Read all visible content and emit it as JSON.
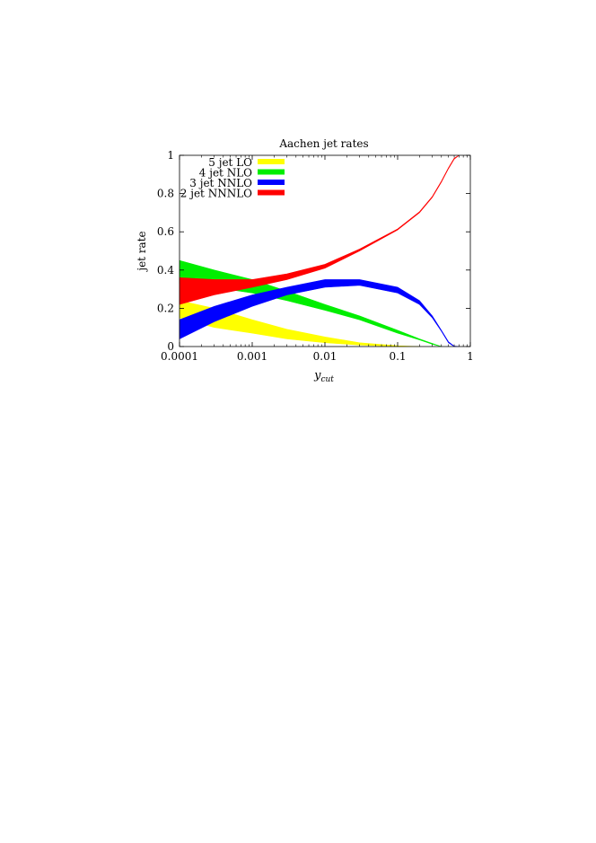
{
  "chart_data": {
    "type": "area",
    "title": "Aachen jet rates",
    "xlabel": "y",
    "xlabel_subscript": "cut",
    "ylabel": "jet rate",
    "xscale": "log",
    "xlim": [
      0.0001,
      1
    ],
    "ylim": [
      0,
      1
    ],
    "xticks": [
      0.0001,
      0.001,
      0.01,
      0.1,
      1
    ],
    "xtick_labels": [
      "0.0001",
      "0.001",
      "0.01",
      "0.1",
      "1"
    ],
    "yticks": [
      0,
      0.2,
      0.4,
      0.6,
      0.8,
      1
    ],
    "ytick_labels": [
      "0",
      "0.2",
      "0.4",
      "0.6",
      "0.8",
      "1"
    ],
    "legend_position": "top-left",
    "series": [
      {
        "name": "5 jet LO",
        "color": "#ffff00",
        "x": [
          0.0001,
          0.0003,
          0.001,
          0.003,
          0.01,
          0.03,
          0.1,
          0.2
        ],
        "lower": [
          0.15,
          0.1,
          0.07,
          0.04,
          0.02,
          0.008,
          0.001,
          0.0
        ],
        "upper": [
          0.24,
          0.2,
          0.14,
          0.09,
          0.05,
          0.02,
          0.004,
          0.0
        ]
      },
      {
        "name": "4 jet NLO",
        "color": "#00ee00",
        "x": [
          0.0001,
          0.0003,
          0.001,
          0.003,
          0.01,
          0.03,
          0.1,
          0.2,
          0.3,
          0.4
        ],
        "lower": [
          0.33,
          0.31,
          0.28,
          0.24,
          0.19,
          0.14,
          0.07,
          0.035,
          0.012,
          0.0
        ],
        "upper": [
          0.45,
          0.4,
          0.35,
          0.29,
          0.22,
          0.16,
          0.085,
          0.04,
          0.016,
          0.0
        ]
      },
      {
        "name": "3 jet NNLO",
        "color": "#0000ff",
        "x": [
          0.0001,
          0.0003,
          0.001,
          0.003,
          0.01,
          0.03,
          0.1,
          0.2,
          0.3,
          0.4,
          0.5,
          0.6,
          0.7
        ],
        "lower": [
          0.04,
          0.13,
          0.21,
          0.27,
          0.31,
          0.32,
          0.28,
          0.22,
          0.15,
          0.08,
          0.02,
          0.0,
          0.0
        ],
        "upper": [
          0.14,
          0.21,
          0.27,
          0.31,
          0.35,
          0.35,
          0.31,
          0.24,
          0.16,
          0.085,
          0.025,
          0.002,
          0.0
        ]
      },
      {
        "name": "2 jet NNNLO",
        "color": "#ff0000",
        "x": [
          0.0001,
          0.0003,
          0.001,
          0.003,
          0.01,
          0.03,
          0.1,
          0.2,
          0.3,
          0.4,
          0.5,
          0.6,
          0.7
        ],
        "lower": [
          0.22,
          0.27,
          0.31,
          0.35,
          0.41,
          0.5,
          0.61,
          0.7,
          0.78,
          0.86,
          0.93,
          0.98,
          1.0
        ],
        "upper": [
          0.36,
          0.35,
          0.35,
          0.38,
          0.43,
          0.51,
          0.615,
          0.705,
          0.785,
          0.865,
          0.935,
          0.985,
          1.0
        ]
      }
    ]
  }
}
